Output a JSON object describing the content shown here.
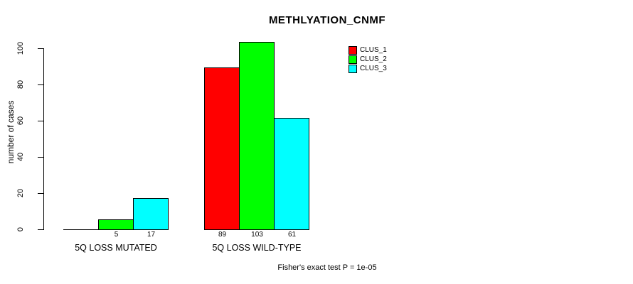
{
  "chart_data": {
    "type": "bar",
    "title": "METHLYATION_CNMF",
    "xlabel": "",
    "ylabel": "number of cases",
    "ylim": [
      0,
      100
    ],
    "yticks": [
      0,
      20,
      40,
      60,
      80,
      100
    ],
    "grid": false,
    "categories": [
      "5Q LOSS MUTATED",
      "5Q LOSS WILD-TYPE"
    ],
    "series": [
      {
        "name": "CLUS_1",
        "color": "#ff0000",
        "values": [
          0,
          89
        ]
      },
      {
        "name": "CLUS_2",
        "color": "#00ff00",
        "values": [
          5,
          103
        ]
      },
      {
        "name": "CLUS_3",
        "color": "#00ffff",
        "values": [
          17,
          61
        ]
      }
    ],
    "bar_value_labels_shown": [
      "5",
      "17",
      "89",
      "103",
      "61"
    ],
    "hide_zero_value_labels": true,
    "legend": {
      "position": "top-right-inset",
      "entries": [
        "CLUS_1",
        "CLUS_2",
        "CLUS_3"
      ]
    },
    "annotation": "Fisher's exact test P = 1e-05",
    "colors": {
      "axis": "#000000",
      "text": "#000000",
      "background": "#ffffff"
    }
  }
}
